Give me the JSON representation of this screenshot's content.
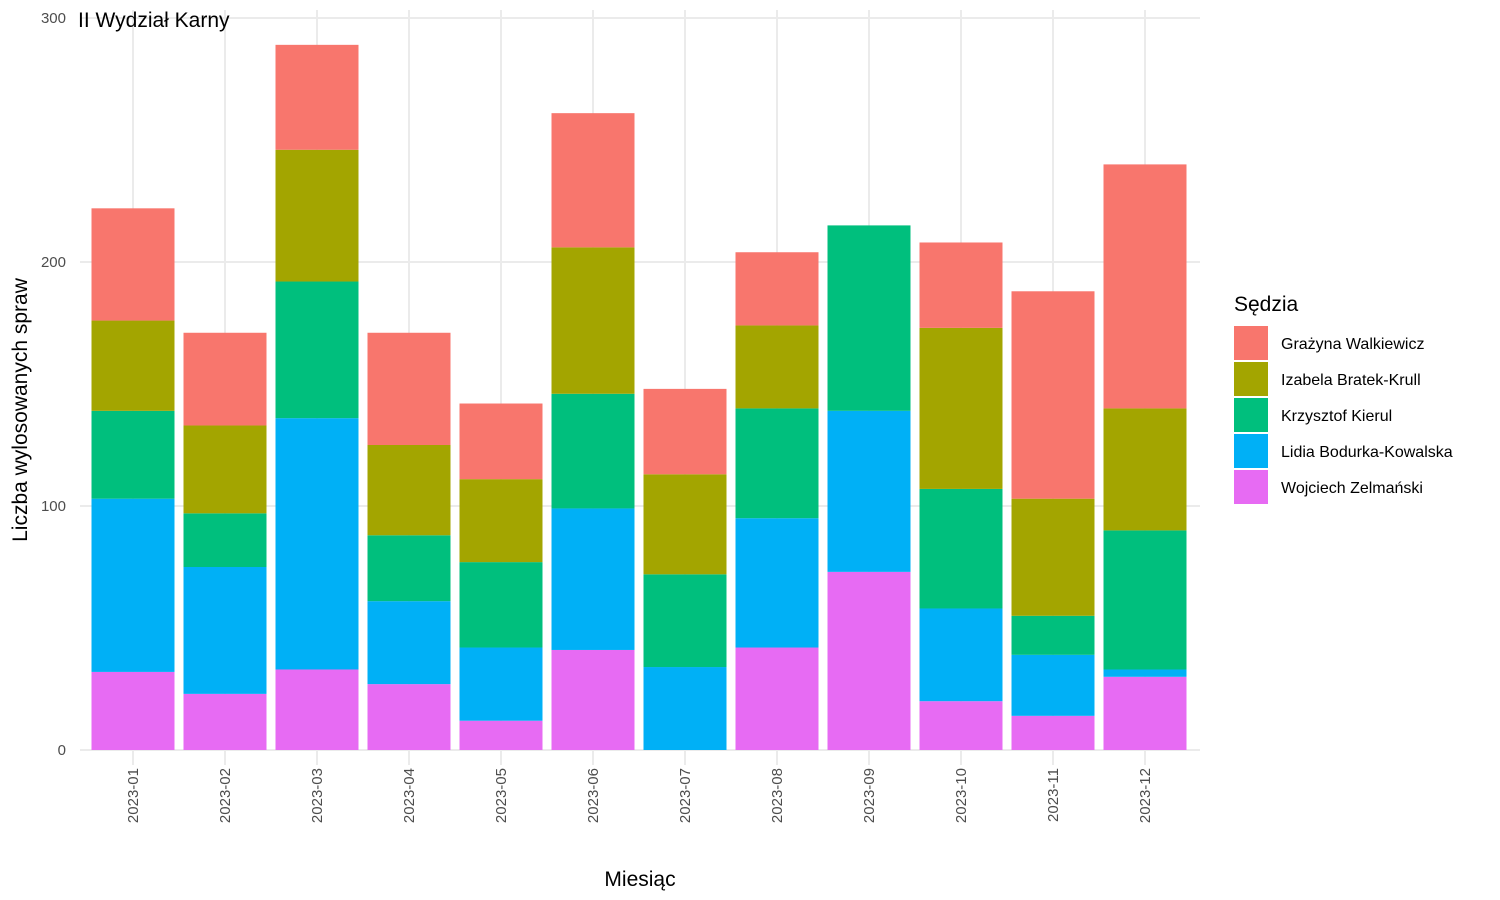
{
  "chart_data": {
    "type": "bar",
    "stacked": true,
    "title": "II Wydział Karny",
    "xlabel": "Miesiąc",
    "ylabel": "Liczba wylosowanych spraw",
    "ylim": [
      0,
      300
    ],
    "yticks": [
      0,
      100,
      200,
      300
    ],
    "grid": true,
    "legend_title": "Sędzia",
    "legend_position": "right",
    "categories": [
      "2023-01",
      "2023-02",
      "2023-03",
      "2023-04",
      "2023-05",
      "2023-06",
      "2023-07",
      "2023-08",
      "2023-09",
      "2023-10",
      "2023-11",
      "2023-12"
    ],
    "series": [
      {
        "name": "Grażyna Walkiewicz",
        "color": "#F8766D",
        "values": [
          46,
          38,
          43,
          46,
          31,
          55,
          35,
          30,
          0,
          35,
          85,
          100
        ]
      },
      {
        "name": "Izabela Bratek-Krull",
        "color": "#A3A500",
        "values": [
          37,
          36,
          54,
          37,
          34,
          60,
          41,
          34,
          0,
          66,
          48,
          50
        ]
      },
      {
        "name": "Krzysztof Kierul",
        "color": "#00BF7D",
        "values": [
          36,
          22,
          56,
          27,
          35,
          47,
          38,
          45,
          76,
          49,
          16,
          57
        ]
      },
      {
        "name": "Lidia Bodurka-Kowalska",
        "color": "#00B0F6",
        "values": [
          71,
          52,
          103,
          34,
          30,
          58,
          34,
          53,
          66,
          38,
          25,
          3
        ]
      },
      {
        "name": "Wojciech Zelmański",
        "color": "#E76BF3",
        "values": [
          32,
          23,
          33,
          27,
          12,
          41,
          0,
          42,
          73,
          20,
          14,
          30
        ]
      }
    ]
  }
}
